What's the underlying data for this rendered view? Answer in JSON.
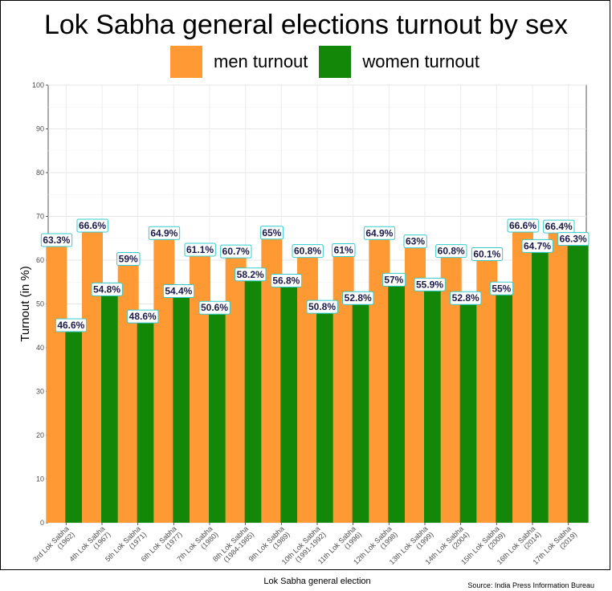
{
  "chart_data": {
    "type": "bar",
    "title": "Lok Sabha general elections turnout by sex",
    "xlabel": "Lok Sabha general election",
    "ylabel": "Turnout (in %)",
    "ylim": [
      0,
      100
    ],
    "yticks": [
      0,
      10,
      20,
      30,
      40,
      50,
      60,
      70,
      80,
      90,
      100
    ],
    "grid": true,
    "legend": "top",
    "caption": "Source: India Press Information Bureau",
    "categories": [
      [
        "3rd Lok Sabha",
        "(1962)"
      ],
      [
        "4th Lok Sabha",
        "(1967)"
      ],
      [
        "5th Lok Sabha",
        "(1971)"
      ],
      [
        "6th Lok Sabha",
        "(1977)"
      ],
      [
        "7th Lok Sabha",
        "(1980)"
      ],
      [
        "8th Lok Sabha",
        "(1984-1985)"
      ],
      [
        "9th Lok Sabha",
        "(1989)"
      ],
      [
        "10th Lok Sabha",
        "(1991-1992)"
      ],
      [
        "11th Lok Sabha",
        "(1996)"
      ],
      [
        "12th Lok Sabha",
        "(1998)"
      ],
      [
        "13th Lok Sabha",
        "(1999)"
      ],
      [
        "14th Lok Sabha",
        "(2004)"
      ],
      [
        "15th Lok Sabha",
        "(2009)"
      ],
      [
        "16th Lok Sabha",
        "(2014)"
      ],
      [
        "17th Lok Sabha",
        "(2019)"
      ]
    ],
    "series": [
      {
        "name": "men turnout",
        "color": "#ff9933",
        "values": [
          63.3,
          66.6,
          59,
          64.9,
          61.1,
          60.7,
          65,
          60.8,
          61,
          64.9,
          63,
          60.8,
          60.1,
          66.6,
          66.4
        ],
        "labels": [
          "63.3%",
          "66.6%",
          "59%",
          "64.9%",
          "61.1%",
          "60.7%",
          "65%",
          "60.8%",
          "61%",
          "64.9%",
          "63%",
          "60.8%",
          "60.1%",
          "66.6%",
          "66.4%"
        ]
      },
      {
        "name": "women turnout",
        "color": "#138808",
        "values": [
          46.6,
          54.8,
          48.6,
          54.4,
          50.6,
          58.2,
          56.8,
          50.8,
          52.8,
          57,
          55.9,
          52.8,
          55,
          64.7,
          66.3
        ],
        "labels": [
          "46.6%",
          "54.8%",
          "48.6%",
          "54.4%",
          "50.6%",
          "58.2%",
          "56.8%",
          "50.8%",
          "52.8%",
          "57%",
          "55.9%",
          "52.8%",
          "55%",
          "64.7%",
          "66.3%"
        ]
      }
    ]
  }
}
